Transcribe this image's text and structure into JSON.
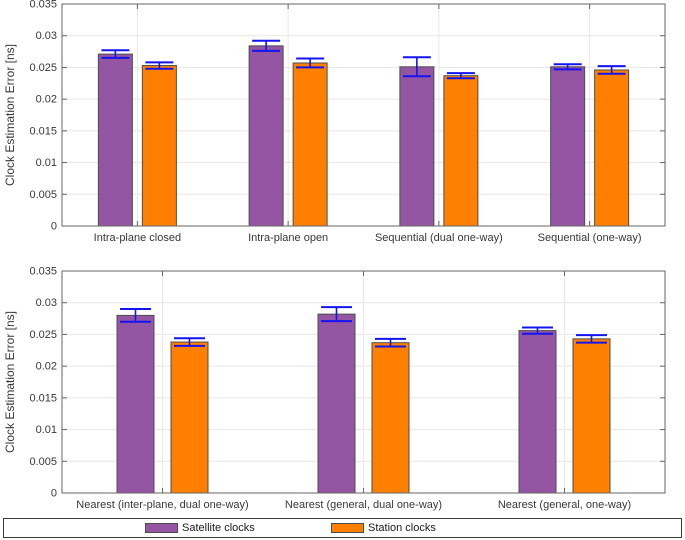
{
  "chart_data": [
    {
      "type": "bar",
      "title": "",
      "xlabel": "",
      "ylabel": "Clock Estimation Error [ns]",
      "ylim": [
        0,
        0.035
      ],
      "ytick_values": [
        0,
        0.005,
        0.01,
        0.015,
        0.02,
        0.025,
        0.03,
        0.035
      ],
      "ytick_labels": [
        "0",
        "0.005",
        "0.01",
        "0.015",
        "0.02",
        "0.025",
        "0.03",
        "0.035"
      ],
      "grid": true,
      "legend_position": "bottom",
      "categories": [
        "Intra-plane closed",
        "Intra-plane open",
        "Sequential (dual one-way)",
        "Sequential (one-way)"
      ],
      "series": [
        {
          "name": "Satellite clocks",
          "color": "#9455A2",
          "values": [
            0.0271,
            0.0284,
            0.0251,
            0.0251
          ],
          "errors": [
            0.0006,
            0.0008,
            0.0015,
            0.0004
          ]
        },
        {
          "name": "Station clocks",
          "color": "#FF8000",
          "values": [
            0.0253,
            0.0257,
            0.0237,
            0.0246
          ],
          "errors": [
            0.0005,
            0.0007,
            0.0004,
            0.0006
          ]
        }
      ]
    },
    {
      "type": "bar",
      "title": "",
      "xlabel": "",
      "ylabel": "Clock Estimation Error [ns]",
      "ylim": [
        0,
        0.035
      ],
      "ytick_values": [
        0,
        0.005,
        0.01,
        0.015,
        0.02,
        0.025,
        0.03,
        0.035
      ],
      "ytick_labels": [
        "0",
        "0.005",
        "0.01",
        "0.015",
        "0.02",
        "0.025",
        "0.03",
        "0.035"
      ],
      "grid": true,
      "legend_position": "bottom",
      "categories": [
        "Nearest (inter-plane, dual one-way)",
        "Nearest (general, dual one-way)",
        "Nearest (general, one-way)"
      ],
      "series": [
        {
          "name": "Satellite clocks",
          "color": "#9455A2",
          "values": [
            0.028,
            0.0282,
            0.0256
          ],
          "errors": [
            0.001,
            0.0011,
            0.0005
          ]
        },
        {
          "name": "Station clocks",
          "color": "#FF8000",
          "values": [
            0.0238,
            0.0237,
            0.0243
          ],
          "errors": [
            0.0006,
            0.0006,
            0.0006
          ]
        }
      ]
    }
  ],
  "legend": {
    "entries": [
      {
        "label": "Satellite clocks",
        "color": "#9455A2"
      },
      {
        "label": "Station clocks",
        "color": "#FF8000"
      }
    ]
  },
  "colors": {
    "error_bar": "#1414F0",
    "grid": "#E7E7E7",
    "axis": "#666666",
    "bar_edge": "#4D4D4D",
    "tick_text": "#383838",
    "background": "#FFFFFF"
  }
}
